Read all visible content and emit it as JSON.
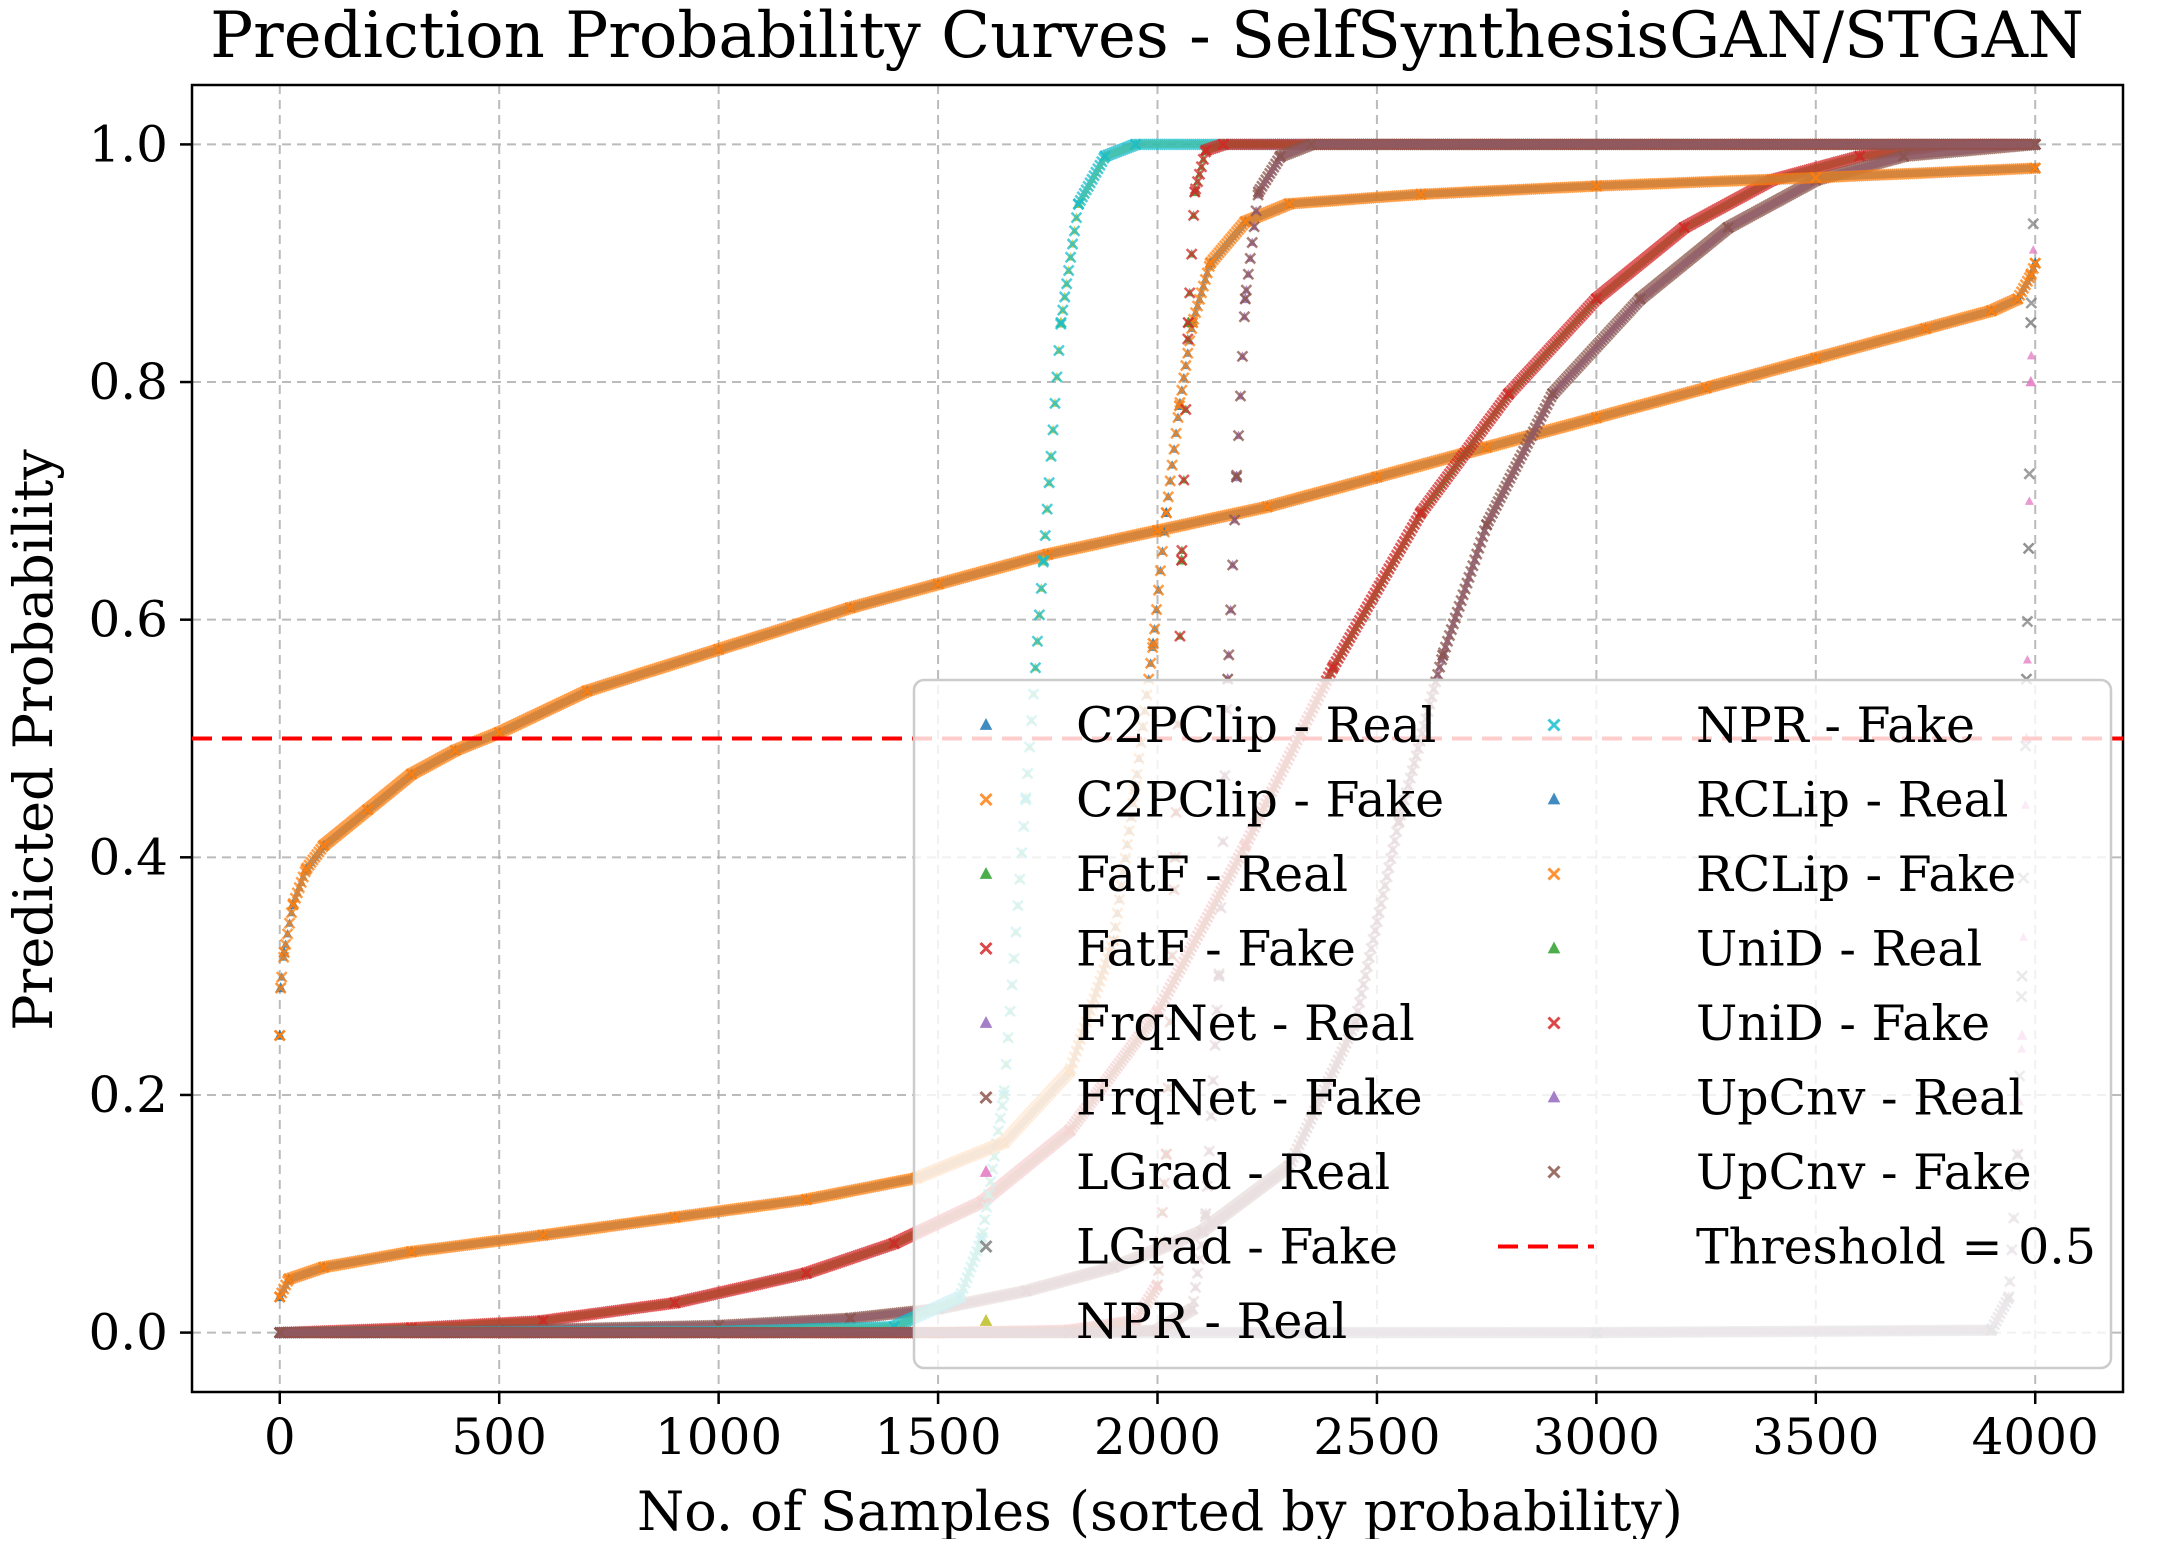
{
  "chart_data": {
    "type": "scatter",
    "title": "Prediction Probability Curves - SelfSynthesisGAN/STGAN",
    "xlabel": "No. of Samples (sorted by probability)",
    "ylabel": "Predicted Probability",
    "xlim": [
      -200,
      4200
    ],
    "ylim": [
      -0.05,
      1.05
    ],
    "x_ticks": [
      0,
      500,
      1000,
      1500,
      2000,
      2500,
      3000,
      3500,
      4000
    ],
    "y_ticks": [
      0.0,
      0.2,
      0.4,
      0.6,
      0.8,
      1.0
    ],
    "x_tick_labels": [
      "0",
      "500",
      "1000",
      "1500",
      "2000",
      "2500",
      "3000",
      "3500",
      "4000"
    ],
    "y_tick_labels": [
      "0.0",
      "0.2",
      "0.4",
      "0.6",
      "0.8",
      "1.0"
    ],
    "grid": true,
    "legend_position": "lower-right",
    "legend_columns": 2,
    "threshold": {
      "label": "Threshold = 0.5",
      "value": 0.5,
      "color": "#ff0000"
    },
    "series": [
      {
        "name": "C2PClip - Real",
        "marker": "triangle",
        "color": "#1f77b4",
        "points": [
          [
            0,
            0.25
          ],
          [
            2,
            0.29
          ],
          [
            10,
            0.32
          ],
          [
            30,
            0.36
          ],
          [
            60,
            0.39
          ],
          [
            100,
            0.41
          ],
          [
            200,
            0.44
          ],
          [
            300,
            0.47
          ],
          [
            400,
            0.49
          ],
          [
            500,
            0.505
          ],
          [
            700,
            0.54
          ],
          [
            1000,
            0.575
          ],
          [
            1300,
            0.61
          ],
          [
            1500,
            0.63
          ],
          [
            1750,
            0.655
          ],
          [
            2000,
            0.675
          ],
          [
            2250,
            0.695
          ],
          [
            2500,
            0.72
          ],
          [
            2750,
            0.745
          ],
          [
            3000,
            0.77
          ],
          [
            3250,
            0.795
          ],
          [
            3500,
            0.82
          ],
          [
            3750,
            0.845
          ],
          [
            3900,
            0.86
          ],
          [
            3960,
            0.87
          ],
          [
            3990,
            0.89
          ],
          [
            4000,
            0.9
          ]
        ]
      },
      {
        "name": "C2PClip - Fake",
        "marker": "x",
        "color": "#ff7f0e",
        "points": [
          [
            0,
            0.25
          ],
          [
            2,
            0.29
          ],
          [
            10,
            0.32
          ],
          [
            30,
            0.36
          ],
          [
            60,
            0.39
          ],
          [
            100,
            0.41
          ],
          [
            200,
            0.44
          ],
          [
            300,
            0.47
          ],
          [
            400,
            0.49
          ],
          [
            500,
            0.505
          ],
          [
            700,
            0.54
          ],
          [
            1000,
            0.575
          ],
          [
            1300,
            0.61
          ],
          [
            1500,
            0.63
          ],
          [
            1750,
            0.655
          ],
          [
            2000,
            0.675
          ],
          [
            2250,
            0.695
          ],
          [
            2500,
            0.72
          ],
          [
            2750,
            0.745
          ],
          [
            3000,
            0.77
          ],
          [
            3250,
            0.795
          ],
          [
            3500,
            0.82
          ],
          [
            3750,
            0.845
          ],
          [
            3900,
            0.86
          ],
          [
            3960,
            0.87
          ],
          [
            3990,
            0.89
          ],
          [
            4000,
            0.9
          ]
        ]
      },
      {
        "name": "FatF - Real",
        "marker": "triangle",
        "color": "#2ca02c",
        "points": [
          [
            0,
            0.0
          ],
          [
            300,
            0.004
          ],
          [
            600,
            0.01
          ],
          [
            900,
            0.025
          ],
          [
            1200,
            0.05
          ],
          [
            1400,
            0.075
          ],
          [
            1600,
            0.11
          ],
          [
            1800,
            0.17
          ],
          [
            2000,
            0.27
          ],
          [
            2200,
            0.41
          ],
          [
            2400,
            0.56
          ],
          [
            2600,
            0.69
          ],
          [
            2800,
            0.79
          ],
          [
            3000,
            0.87
          ],
          [
            3200,
            0.93
          ],
          [
            3400,
            0.97
          ],
          [
            3600,
            0.99
          ],
          [
            3800,
            1.0
          ],
          [
            4000,
            1.0
          ]
        ]
      },
      {
        "name": "FatF - Fake",
        "marker": "x",
        "color": "#d62728",
        "points": [
          [
            0,
            0.0
          ],
          [
            300,
            0.004
          ],
          [
            600,
            0.01
          ],
          [
            900,
            0.025
          ],
          [
            1200,
            0.05
          ],
          [
            1400,
            0.075
          ],
          [
            1600,
            0.11
          ],
          [
            1800,
            0.17
          ],
          [
            2000,
            0.27
          ],
          [
            2200,
            0.41
          ],
          [
            2400,
            0.56
          ],
          [
            2600,
            0.69
          ],
          [
            2800,
            0.79
          ],
          [
            3000,
            0.87
          ],
          [
            3200,
            0.93
          ],
          [
            3400,
            0.97
          ],
          [
            3600,
            0.99
          ],
          [
            3800,
            1.0
          ],
          [
            4000,
            1.0
          ]
        ]
      },
      {
        "name": "FrqNet - Real",
        "marker": "triangle",
        "color": "#9467bd",
        "points": [
          [
            0,
            0.0
          ],
          [
            500,
            0.002
          ],
          [
            1000,
            0.006
          ],
          [
            1300,
            0.012
          ],
          [
            1500,
            0.02
          ],
          [
            1700,
            0.035
          ],
          [
            1900,
            0.055
          ],
          [
            2100,
            0.085
          ],
          [
            2300,
            0.14
          ],
          [
            2450,
            0.26
          ],
          [
            2550,
            0.43
          ],
          [
            2650,
            0.57
          ],
          [
            2750,
            0.68
          ],
          [
            2900,
            0.79
          ],
          [
            3100,
            0.87
          ],
          [
            3300,
            0.93
          ],
          [
            3500,
            0.97
          ],
          [
            3700,
            0.99
          ],
          [
            4000,
            1.0
          ]
        ]
      },
      {
        "name": "FrqNet - Fake",
        "marker": "x",
        "color": "#8c564b",
        "points": [
          [
            0,
            0.0
          ],
          [
            500,
            0.002
          ],
          [
            1000,
            0.006
          ],
          [
            1300,
            0.012
          ],
          [
            1500,
            0.02
          ],
          [
            1700,
            0.035
          ],
          [
            1900,
            0.055
          ],
          [
            2100,
            0.085
          ],
          [
            2300,
            0.14
          ],
          [
            2450,
            0.26
          ],
          [
            2550,
            0.43
          ],
          [
            2650,
            0.57
          ],
          [
            2750,
            0.68
          ],
          [
            2900,
            0.79
          ],
          [
            3100,
            0.87
          ],
          [
            3300,
            0.93
          ],
          [
            3500,
            0.97
          ],
          [
            3700,
            0.99
          ],
          [
            4000,
            1.0
          ]
        ]
      },
      {
        "name": "LGrad - Real",
        "marker": "triangle",
        "color": "#e377c2",
        "points": [
          [
            0,
            0.0
          ],
          [
            1000,
            0.0
          ],
          [
            3000,
            0.0
          ],
          [
            3900,
            0.002
          ],
          [
            3940,
            0.03
          ],
          [
            3960,
            0.15
          ],
          [
            3970,
            0.25
          ],
          [
            3980,
            0.5
          ],
          [
            3990,
            0.8
          ],
          [
            4000,
            1.0
          ]
        ]
      },
      {
        "name": "LGrad - Fake",
        "marker": "x",
        "color": "#7f7f7f",
        "points": [
          [
            0,
            0.0
          ],
          [
            1000,
            0.0
          ],
          [
            3000,
            0.0
          ],
          [
            3900,
            0.002
          ],
          [
            3940,
            0.03
          ],
          [
            3960,
            0.15
          ],
          [
            3970,
            0.3
          ],
          [
            3980,
            0.55
          ],
          [
            3985,
            0.66
          ],
          [
            3990,
            0.85
          ],
          [
            4000,
            1.0
          ]
        ]
      },
      {
        "name": "NPR - Real",
        "marker": "triangle",
        "color": "#bcbd22",
        "points": [
          [
            0,
            0.0
          ],
          [
            1000,
            0.001
          ],
          [
            1400,
            0.005
          ],
          [
            1550,
            0.03
          ],
          [
            1600,
            0.08
          ],
          [
            1650,
            0.2
          ],
          [
            1700,
            0.45
          ],
          [
            1740,
            0.65
          ],
          [
            1780,
            0.85
          ],
          [
            1820,
            0.95
          ],
          [
            1880,
            0.99
          ],
          [
            1950,
            1.0
          ],
          [
            4000,
            1.0
          ]
        ]
      },
      {
        "name": "NPR - Fake",
        "marker": "x",
        "color": "#17becf",
        "points": [
          [
            0,
            0.0
          ],
          [
            1000,
            0.001
          ],
          [
            1400,
            0.005
          ],
          [
            1550,
            0.03
          ],
          [
            1600,
            0.08
          ],
          [
            1650,
            0.2
          ],
          [
            1700,
            0.45
          ],
          [
            1740,
            0.65
          ],
          [
            1780,
            0.85
          ],
          [
            1820,
            0.95
          ],
          [
            1880,
            0.99
          ],
          [
            1950,
            1.0
          ],
          [
            4000,
            1.0
          ]
        ]
      },
      {
        "name": "RCLip - Real",
        "marker": "triangle",
        "color": "#1f77b4",
        "points": [
          [
            0,
            0.03
          ],
          [
            20,
            0.045
          ],
          [
            100,
            0.055
          ],
          [
            300,
            0.068
          ],
          [
            600,
            0.082
          ],
          [
            900,
            0.097
          ],
          [
            1200,
            0.112
          ],
          [
            1450,
            0.13
          ],
          [
            1650,
            0.16
          ],
          [
            1800,
            0.22
          ],
          [
            1900,
            0.33
          ],
          [
            1950,
            0.46
          ],
          [
            1990,
            0.58
          ],
          [
            2020,
            0.69
          ],
          [
            2050,
            0.78
          ],
          [
            2080,
            0.85
          ],
          [
            2120,
            0.9
          ],
          [
            2200,
            0.935
          ],
          [
            2300,
            0.95
          ],
          [
            2600,
            0.958
          ],
          [
            3000,
            0.965
          ],
          [
            3500,
            0.972
          ],
          [
            4000,
            0.98
          ]
        ]
      },
      {
        "name": "RCLip - Fake",
        "marker": "x",
        "color": "#ff7f0e",
        "points": [
          [
            0,
            0.03
          ],
          [
            20,
            0.045
          ],
          [
            100,
            0.055
          ],
          [
            300,
            0.068
          ],
          [
            600,
            0.082
          ],
          [
            900,
            0.097
          ],
          [
            1200,
            0.112
          ],
          [
            1450,
            0.13
          ],
          [
            1650,
            0.16
          ],
          [
            1800,
            0.22
          ],
          [
            1900,
            0.33
          ],
          [
            1950,
            0.46
          ],
          [
            1990,
            0.58
          ],
          [
            2020,
            0.69
          ],
          [
            2050,
            0.78
          ],
          [
            2080,
            0.85
          ],
          [
            2120,
            0.9
          ],
          [
            2200,
            0.935
          ],
          [
            2300,
            0.95
          ],
          [
            2600,
            0.958
          ],
          [
            3000,
            0.965
          ],
          [
            3500,
            0.972
          ],
          [
            4000,
            0.98
          ]
        ]
      },
      {
        "name": "UniD - Real",
        "marker": "triangle",
        "color": "#2ca02c",
        "points": [
          [
            0,
            0.0
          ],
          [
            1500,
            0.0
          ],
          [
            1800,
            0.002
          ],
          [
            1950,
            0.01
          ],
          [
            2000,
            0.04
          ],
          [
            2020,
            0.15
          ],
          [
            2040,
            0.4
          ],
          [
            2055,
            0.65
          ],
          [
            2070,
            0.85
          ],
          [
            2085,
            0.96
          ],
          [
            2110,
            0.995
          ],
          [
            2150,
            1.0
          ],
          [
            4000,
            1.0
          ]
        ]
      },
      {
        "name": "UniD - Fake",
        "marker": "x",
        "color": "#d62728",
        "points": [
          [
            0,
            0.0
          ],
          [
            1500,
            0.0
          ],
          [
            1800,
            0.002
          ],
          [
            1950,
            0.01
          ],
          [
            2000,
            0.04
          ],
          [
            2020,
            0.15
          ],
          [
            2040,
            0.4
          ],
          [
            2055,
            0.65
          ],
          [
            2070,
            0.85
          ],
          [
            2085,
            0.96
          ],
          [
            2110,
            0.995
          ],
          [
            2150,
            1.0
          ],
          [
            4000,
            1.0
          ]
        ]
      },
      {
        "name": "UpCnv - Real",
        "marker": "triangle",
        "color": "#9467bd",
        "points": [
          [
            0,
            0.0
          ],
          [
            1800,
            0.0
          ],
          [
            2000,
            0.002
          ],
          [
            2080,
            0.02
          ],
          [
            2110,
            0.1
          ],
          [
            2140,
            0.3
          ],
          [
            2160,
            0.55
          ],
          [
            2180,
            0.72
          ],
          [
            2200,
            0.87
          ],
          [
            2230,
            0.96
          ],
          [
            2280,
            0.99
          ],
          [
            2350,
            1.0
          ],
          [
            4000,
            1.0
          ]
        ]
      },
      {
        "name": "UpCnv - Fake",
        "marker": "x",
        "color": "#8c564b",
        "points": [
          [
            0,
            0.0
          ],
          [
            1800,
            0.0
          ],
          [
            2000,
            0.002
          ],
          [
            2080,
            0.02
          ],
          [
            2110,
            0.1
          ],
          [
            2140,
            0.3
          ],
          [
            2160,
            0.55
          ],
          [
            2180,
            0.72
          ],
          [
            2200,
            0.87
          ],
          [
            2230,
            0.96
          ],
          [
            2280,
            0.99
          ],
          [
            2350,
            1.0
          ],
          [
            4000,
            1.0
          ]
        ]
      }
    ]
  }
}
